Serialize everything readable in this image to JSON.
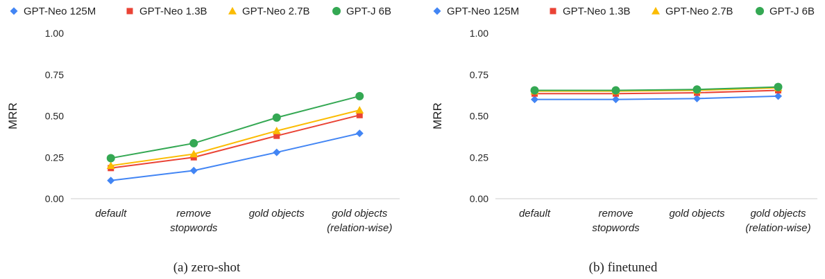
{
  "chart_data": [
    {
      "type": "line",
      "caption": "(a) zero-shot",
      "categories": [
        "default",
        "remove\nstopwords",
        "gold objects",
        "gold objects\n(relation-wise)"
      ],
      "ylabel": "MRR",
      "ylim": [
        0,
        1
      ],
      "yticks": [
        "0.00",
        "0.25",
        "0.50",
        "0.75",
        "1.00"
      ],
      "legend_position": "top",
      "grid": false,
      "series": [
        {
          "name": "GPT-Neo 125M",
          "color": "#4285F4",
          "marker": "diamond",
          "values": [
            0.11,
            0.17,
            0.28,
            0.395
          ]
        },
        {
          "name": "GPT-Neo 1.3B",
          "color": "#EA4335",
          "marker": "square",
          "values": [
            0.185,
            0.25,
            0.38,
            0.505
          ]
        },
        {
          "name": "GPT-Neo 2.7B",
          "color": "#FBBC04",
          "marker": "triangle",
          "values": [
            0.2,
            0.27,
            0.41,
            0.535
          ]
        },
        {
          "name": "GPT-J 6B",
          "color": "#34A853",
          "marker": "circle",
          "values": [
            0.245,
            0.335,
            0.49,
            0.62
          ]
        }
      ]
    },
    {
      "type": "line",
      "caption": "(b) finetuned",
      "categories": [
        "default",
        "remove\nstopwords",
        "gold objects",
        "gold objects\n(relation-wise)"
      ],
      "ylabel": "MRR",
      "ylim": [
        0,
        1
      ],
      "yticks": [
        "0.00",
        "0.25",
        "0.50",
        "0.75",
        "1.00"
      ],
      "legend_position": "top",
      "grid": false,
      "series": [
        {
          "name": "GPT-Neo 125M",
          "color": "#4285F4",
          "marker": "diamond",
          "values": [
            0.6,
            0.6,
            0.605,
            0.62
          ]
        },
        {
          "name": "GPT-Neo 1.3B",
          "color": "#EA4335",
          "marker": "square",
          "values": [
            0.635,
            0.635,
            0.64,
            0.655
          ]
        },
        {
          "name": "GPT-Neo 2.7B",
          "color": "#FBBC04",
          "marker": "triangle",
          "values": [
            0.65,
            0.65,
            0.655,
            0.67
          ]
        },
        {
          "name": "GPT-J 6B",
          "color": "#34A853",
          "marker": "circle",
          "values": [
            0.655,
            0.655,
            0.66,
            0.675
          ]
        }
      ]
    }
  ]
}
